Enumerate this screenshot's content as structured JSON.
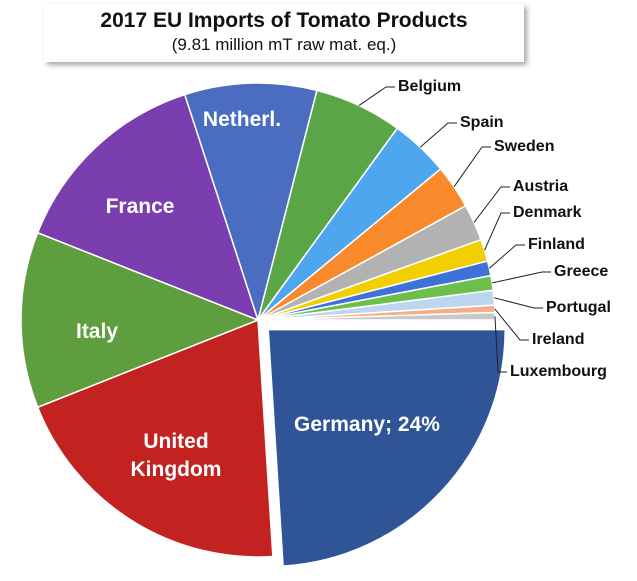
{
  "chart_data": {
    "type": "pie",
    "title": "2017 EU Imports of Tomato Products",
    "subtitle": "(9.81 million mT raw mat. eq.)",
    "categories": [
      "Germany",
      "United Kingdom",
      "Italy",
      "France",
      "Netherl.",
      "Belgium",
      "Spain",
      "Sweden",
      "Austria",
      "Denmark",
      "Finland",
      "Greece",
      "Portugal",
      "Ireland",
      "Luxembourg"
    ],
    "values": [
      24,
      20,
      12,
      14,
      9,
      6,
      4,
      3,
      2.5,
      1.5,
      1,
      1,
      1,
      0.5,
      0.5
    ],
    "value_labels": [
      "Germany; 24%",
      null,
      null,
      null,
      null,
      null,
      null,
      null,
      null,
      null,
      null,
      null,
      null,
      null,
      null
    ],
    "colors": [
      "#2f5597",
      "#c22321",
      "#5e9e3e",
      "#7a3eae",
      "#4a6dbf",
      "#5aa545",
      "#4ea6ee",
      "#f98a2c",
      "#b2b2b2",
      "#f2cf00",
      "#3f72d8",
      "#6dbe4a",
      "#bcd6f0",
      "#f5ae88",
      "#c8c8c8"
    ]
  }
}
